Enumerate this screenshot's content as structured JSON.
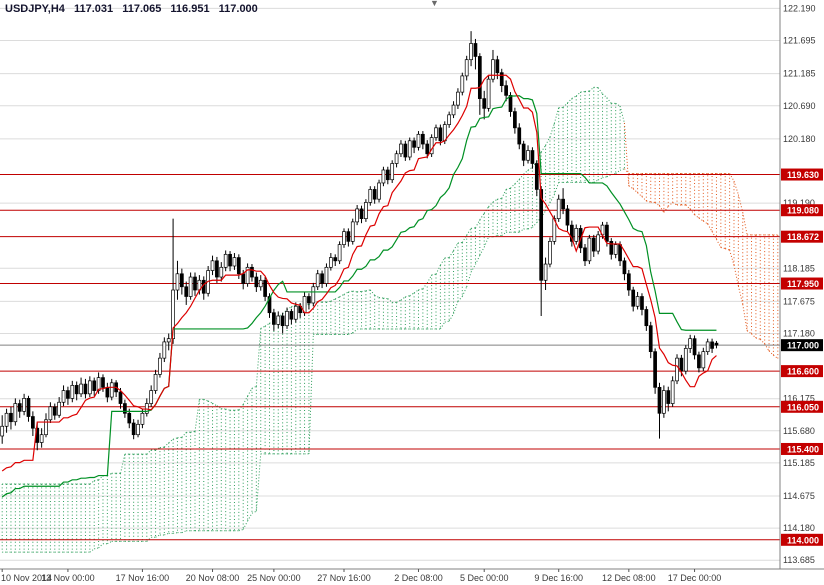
{
  "header": {
    "symbol_period": "USDJPY,H4",
    "ohlc": {
      "open": "117.031",
      "high": "117.065",
      "low": "116.951",
      "close": "117.000"
    }
  },
  "icons": {
    "chart_shift_marker": "▼"
  },
  "chart_data": {
    "type": "candlestick",
    "title": "USDJPY,H4",
    "symbol": "USDJPY",
    "timeframe": "H4",
    "current_price": 117.0,
    "levels": [
      119.63,
      119.08,
      118.672,
      117.95,
      116.6,
      116.05,
      115.4,
      114.0
    ],
    "y_axis": {
      "min": 113.55,
      "max": 122.32,
      "ticks": [
        "122.190",
        "121.695",
        "121.185",
        "120.690",
        "120.180",
        "119.190",
        "118.185",
        "117.675",
        "117.180",
        "116.175",
        "115.680",
        "115.185",
        "114.675",
        "114.180",
        "113.685"
      ]
    },
    "x_ticks": [
      {
        "label": "10 Nov 2014",
        "index": 0
      },
      {
        "label": "13 Nov 00:00",
        "index": 15
      },
      {
        "label": "17 Nov 16:00",
        "index": 32
      },
      {
        "label": "20 Nov 08:00",
        "index": 48
      },
      {
        "label": "25 Nov 00:00",
        "index": 62
      },
      {
        "label": "27 Nov 16:00",
        "index": 78
      },
      {
        "label": "2 Dec 08:00",
        "index": 95
      },
      {
        "label": "5 Dec 00:00",
        "index": 110
      },
      {
        "label": "9 Dec 16:00",
        "index": 127
      },
      {
        "label": "12 Dec 08:00",
        "index": 143
      },
      {
        "label": "17 Dec 00:00",
        "index": 158
      }
    ],
    "indicators": {
      "ichimoku": {
        "tenkan": 9,
        "kijun": 26,
        "senkou_b": 52,
        "shift": 20,
        "pre_range": {
          "9": {
            "high": 115.1,
            "low": 114.2
          },
          "26": {
            "high": 115.3,
            "low": 113.4
          },
          "52": {
            "high": 115.3,
            "low": 111.7
          }
        }
      }
    },
    "colors": {
      "grid": "#dcdcdc",
      "axis_text": "#3a3a3a",
      "level_line": "#c00000",
      "level_badge": "#c40000",
      "current_line": "#808080",
      "current_badge": "#000000",
      "tenkan": "#dd0000",
      "kijun": "#009024",
      "cloud_bull": "#2e9e5b",
      "cloud_bear": "#e2571b",
      "candle_up_fill": "#ffffff",
      "candle_down_fill": "#000000",
      "candle_stroke": "#000000"
    },
    "candles": [
      [
        115.6,
        115.92,
        115.48,
        115.75
      ],
      [
        115.75,
        116.02,
        115.65,
        115.95
      ],
      [
        115.95,
        116.05,
        115.7,
        115.82
      ],
      [
        115.82,
        116.18,
        115.76,
        116.1
      ],
      [
        116.1,
        116.16,
        115.88,
        115.98
      ],
      [
        115.98,
        116.25,
        115.92,
        116.18
      ],
      [
        116.18,
        116.22,
        115.82,
        115.9
      ],
      [
        115.9,
        115.98,
        115.6,
        115.72
      ],
      [
        115.72,
        115.8,
        115.38,
        115.5
      ],
      [
        115.5,
        115.72,
        115.42,
        115.62
      ],
      [
        115.62,
        115.95,
        115.58,
        115.85
      ],
      [
        115.85,
        116.12,
        115.8,
        116.05
      ],
      [
        116.05,
        116.1,
        115.85,
        115.92
      ],
      [
        115.92,
        116.2,
        115.88,
        116.12
      ],
      [
        116.12,
        116.38,
        116.06,
        116.3
      ],
      [
        116.3,
        116.36,
        116.08,
        116.18
      ],
      [
        116.18,
        116.45,
        116.12,
        116.38
      ],
      [
        116.38,
        116.44,
        116.15,
        116.25
      ],
      [
        116.25,
        116.5,
        116.2,
        116.4
      ],
      [
        116.4,
        116.48,
        116.18,
        116.25
      ],
      [
        116.25,
        116.52,
        116.2,
        116.45
      ],
      [
        116.45,
        116.5,
        116.22,
        116.3
      ],
      [
        116.3,
        116.58,
        116.25,
        116.5
      ],
      [
        116.5,
        116.55,
        116.28,
        116.35
      ],
      [
        116.35,
        116.42,
        116.12,
        116.2
      ],
      [
        116.2,
        116.48,
        116.15,
        116.42
      ],
      [
        116.42,
        116.46,
        116.2,
        116.28
      ],
      [
        116.28,
        116.34,
        116.02,
        116.1
      ],
      [
        116.1,
        116.16,
        115.88,
        115.95
      ],
      [
        115.95,
        116.02,
        115.72,
        115.8
      ],
      [
        115.8,
        115.86,
        115.55,
        115.62
      ],
      [
        115.62,
        115.85,
        115.58,
        115.78
      ],
      [
        115.78,
        116.02,
        115.72,
        115.95
      ],
      [
        115.95,
        116.18,
        115.9,
        116.1
      ],
      [
        116.1,
        116.38,
        116.05,
        116.3
      ],
      [
        116.3,
        116.62,
        116.25,
        116.55
      ],
      [
        116.55,
        116.88,
        116.5,
        116.8
      ],
      [
        116.8,
        117.12,
        116.74,
        117.05
      ],
      [
        117.05,
        117.18,
        116.92,
        117.1
      ],
      [
        117.1,
        118.95,
        117.02,
        117.85
      ],
      [
        117.85,
        118.3,
        117.7,
        118.1
      ],
      [
        118.1,
        118.18,
        117.78,
        117.9
      ],
      [
        117.9,
        117.98,
        117.62,
        117.75
      ],
      [
        117.75,
        118.12,
        117.7,
        118.05
      ],
      [
        118.05,
        118.12,
        117.76,
        117.85
      ],
      [
        117.85,
        118.08,
        117.78,
        118.0
      ],
      [
        118.0,
        118.06,
        117.7,
        117.8
      ],
      [
        117.8,
        118.22,
        117.75,
        118.15
      ],
      [
        118.15,
        118.38,
        118.08,
        118.3
      ],
      [
        118.3,
        118.36,
        117.96,
        118.05
      ],
      [
        118.05,
        118.28,
        117.98,
        118.2
      ],
      [
        118.2,
        118.46,
        118.14,
        118.4
      ],
      [
        118.4,
        118.45,
        118.14,
        118.22
      ],
      [
        118.22,
        118.42,
        118.16,
        118.35
      ],
      [
        118.35,
        118.4,
        118.02,
        118.1
      ],
      [
        118.1,
        118.16,
        117.86,
        117.95
      ],
      [
        117.95,
        118.26,
        117.9,
        118.2
      ],
      [
        118.2,
        118.25,
        117.98,
        118.05
      ],
      [
        118.05,
        118.12,
        117.82,
        117.9
      ],
      [
        117.9,
        118.08,
        117.84,
        118.0
      ],
      [
        118.0,
        118.05,
        117.68,
        117.75
      ],
      [
        117.75,
        117.8,
        117.42,
        117.5
      ],
      [
        117.5,
        117.56,
        117.22,
        117.32
      ],
      [
        117.32,
        117.52,
        117.26,
        117.45
      ],
      [
        117.45,
        117.5,
        117.18,
        117.3
      ],
      [
        117.3,
        117.58,
        117.25,
        117.52
      ],
      [
        117.52,
        117.56,
        117.32,
        117.4
      ],
      [
        117.4,
        117.66,
        117.35,
        117.6
      ],
      [
        117.6,
        117.65,
        117.42,
        117.5
      ],
      [
        117.5,
        117.82,
        117.45,
        117.75
      ],
      [
        117.75,
        117.8,
        117.55,
        117.65
      ],
      [
        117.65,
        117.96,
        117.6,
        117.9
      ],
      [
        117.9,
        118.16,
        117.85,
        118.1
      ],
      [
        118.1,
        118.15,
        117.88,
        117.95
      ],
      [
        117.95,
        118.26,
        117.9,
        118.2
      ],
      [
        118.2,
        118.42,
        118.15,
        118.35
      ],
      [
        118.35,
        118.4,
        118.22,
        118.3
      ],
      [
        118.3,
        118.6,
        118.25,
        118.55
      ],
      [
        118.55,
        118.8,
        118.5,
        118.75
      ],
      [
        118.75,
        118.8,
        118.52,
        118.6
      ],
      [
        118.6,
        118.95,
        118.55,
        118.9
      ],
      [
        118.9,
        119.16,
        118.85,
        119.1
      ],
      [
        119.1,
        119.15,
        118.88,
        118.95
      ],
      [
        118.95,
        119.25,
        118.9,
        119.2
      ],
      [
        119.2,
        119.45,
        119.15,
        119.4
      ],
      [
        119.4,
        119.45,
        119.18,
        119.25
      ],
      [
        119.25,
        119.55,
        119.2,
        119.5
      ],
      [
        119.5,
        119.75,
        119.45,
        119.7
      ],
      [
        119.7,
        119.75,
        119.48,
        119.55
      ],
      [
        119.55,
        119.85,
        119.5,
        119.8
      ],
      [
        119.8,
        120.0,
        119.74,
        119.95
      ],
      [
        119.95,
        120.16,
        119.9,
        120.1
      ],
      [
        120.1,
        120.15,
        119.84,
        119.9
      ],
      [
        119.9,
        120.2,
        119.85,
        120.15
      ],
      [
        120.15,
        120.2,
        119.96,
        120.05
      ],
      [
        120.05,
        120.3,
        120.0,
        120.25
      ],
      [
        120.25,
        120.3,
        120.02,
        120.1
      ],
      [
        120.1,
        120.16,
        119.88,
        119.95
      ],
      [
        119.95,
        120.25,
        119.9,
        120.2
      ],
      [
        120.2,
        120.4,
        120.15,
        120.35
      ],
      [
        120.35,
        120.4,
        120.08,
        120.15
      ],
      [
        120.15,
        120.45,
        120.1,
        120.4
      ],
      [
        120.4,
        120.6,
        120.35,
        120.55
      ],
      [
        120.55,
        120.76,
        120.5,
        120.7
      ],
      [
        120.7,
        120.96,
        120.64,
        120.9
      ],
      [
        120.9,
        121.2,
        120.85,
        121.15
      ],
      [
        121.15,
        121.46,
        121.08,
        121.4
      ],
      [
        121.4,
        121.84,
        121.3,
        121.65
      ],
      [
        121.65,
        121.72,
        121.25,
        121.45
      ],
      [
        121.45,
        121.5,
        120.55,
        120.8
      ],
      [
        120.8,
        120.92,
        120.48,
        120.65
      ],
      [
        120.65,
        121.15,
        120.6,
        121.1
      ],
      [
        121.1,
        121.55,
        121.05,
        121.4
      ],
      [
        121.4,
        121.46,
        121.1,
        121.2
      ],
      [
        121.2,
        121.26,
        120.9,
        121.0
      ],
      [
        121.0,
        121.08,
        120.76,
        120.85
      ],
      [
        120.85,
        120.9,
        120.52,
        120.6
      ],
      [
        120.6,
        120.66,
        120.26,
        120.35
      ],
      [
        120.35,
        120.42,
        120.02,
        120.1
      ],
      [
        120.1,
        120.15,
        119.76,
        119.85
      ],
      [
        119.85,
        120.08,
        119.8,
        120.0
      ],
      [
        120.0,
        120.05,
        119.72,
        119.8
      ],
      [
        119.8,
        119.85,
        119.3,
        119.4
      ],
      [
        119.4,
        119.45,
        117.45,
        118.0
      ],
      [
        118.0,
        118.35,
        117.85,
        118.25
      ],
      [
        118.25,
        118.66,
        118.2,
        118.6
      ],
      [
        118.6,
        119.0,
        118.55,
        118.95
      ],
      [
        118.95,
        119.32,
        118.9,
        119.25
      ],
      [
        119.25,
        119.42,
        119.02,
        119.1
      ],
      [
        119.1,
        119.16,
        118.76,
        118.85
      ],
      [
        118.85,
        118.92,
        118.52,
        118.6
      ],
      [
        118.6,
        118.86,
        118.55,
        118.8
      ],
      [
        118.8,
        118.85,
        118.42,
        118.5
      ],
      [
        118.5,
        118.56,
        118.22,
        118.3
      ],
      [
        118.3,
        118.7,
        118.25,
        118.65
      ],
      [
        118.65,
        118.7,
        118.36,
        118.45
      ],
      [
        118.45,
        118.76,
        118.4,
        118.7
      ],
      [
        118.7,
        118.9,
        118.64,
        118.85
      ],
      [
        118.85,
        118.9,
        118.52,
        118.6
      ],
      [
        118.6,
        118.65,
        118.32,
        118.4
      ],
      [
        118.4,
        118.6,
        118.34,
        118.55
      ],
      [
        118.55,
        118.6,
        118.22,
        118.3
      ],
      [
        118.3,
        118.35,
        118.0,
        118.1
      ],
      [
        118.1,
        118.16,
        117.76,
        117.85
      ],
      [
        117.85,
        117.9,
        117.52,
        117.6
      ],
      [
        117.6,
        117.82,
        117.55,
        117.75
      ],
      [
        117.75,
        117.8,
        117.46,
        117.55
      ],
      [
        117.55,
        117.6,
        117.22,
        117.3
      ],
      [
        117.3,
        117.36,
        116.8,
        116.9
      ],
      [
        116.9,
        116.95,
        116.25,
        116.35
      ],
      [
        116.35,
        116.42,
        115.56,
        115.95
      ],
      [
        115.95,
        116.38,
        115.88,
        116.3
      ],
      [
        116.3,
        116.36,
        115.98,
        116.1
      ],
      [
        116.1,
        116.52,
        116.05,
        116.45
      ],
      [
        116.45,
        116.86,
        116.4,
        116.8
      ],
      [
        116.8,
        116.85,
        116.52,
        116.6
      ],
      [
        116.6,
        117.0,
        116.55,
        116.95
      ],
      [
        116.95,
        117.16,
        116.88,
        117.1
      ],
      [
        117.1,
        117.15,
        116.78,
        116.85
      ],
      [
        116.85,
        116.9,
        116.58,
        116.65
      ],
      [
        116.65,
        116.96,
        116.6,
        116.9
      ],
      [
        116.9,
        117.1,
        116.85,
        117.05
      ],
      [
        117.05,
        117.1,
        116.88,
        116.95
      ],
      [
        117.031,
        117.065,
        116.951,
        117.0
      ]
    ]
  }
}
